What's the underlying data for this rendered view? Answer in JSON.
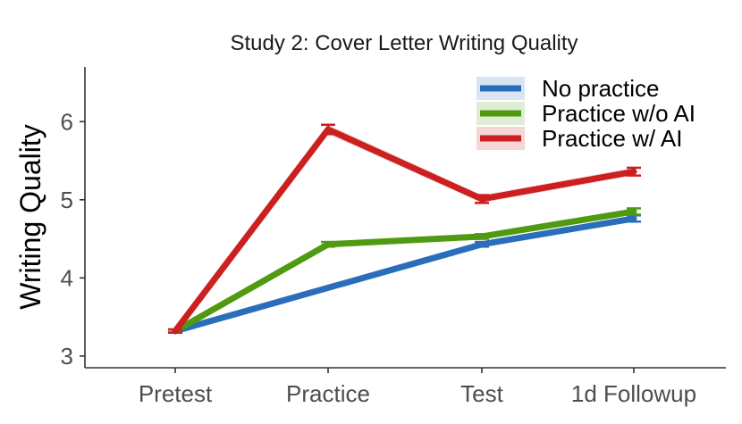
{
  "chart_data": {
    "type": "line",
    "title": "Study 2: Cover Letter Writing Quality",
    "xlabel": "",
    "ylabel": "Writing Quality",
    "categories": [
      "Pretest",
      "Practice",
      "Test",
      "1d Followup"
    ],
    "ylim": [
      2.85,
      6.7
    ],
    "yticks": [
      3,
      4,
      5,
      6
    ],
    "grid": false,
    "legend_position": "top-right",
    "series": [
      {
        "name": "No practice",
        "color": "#2a6ebb",
        "values": [
          3.32,
          null,
          4.43,
          4.76
        ],
        "errors": [
          0.02,
          null,
          0.03,
          0.04
        ]
      },
      {
        "name": "Practice w/o AI",
        "color": "#4f9a10",
        "values": [
          3.32,
          4.43,
          4.53,
          4.85
        ],
        "errors": [
          0.02,
          0.03,
          0.03,
          0.04
        ]
      },
      {
        "name": "Practice w/ AI",
        "color": "#cc1f1f",
        "values": [
          3.32,
          5.9,
          5.01,
          5.36
        ],
        "errors": [
          0.02,
          0.06,
          0.05,
          0.05
        ]
      }
    ]
  }
}
